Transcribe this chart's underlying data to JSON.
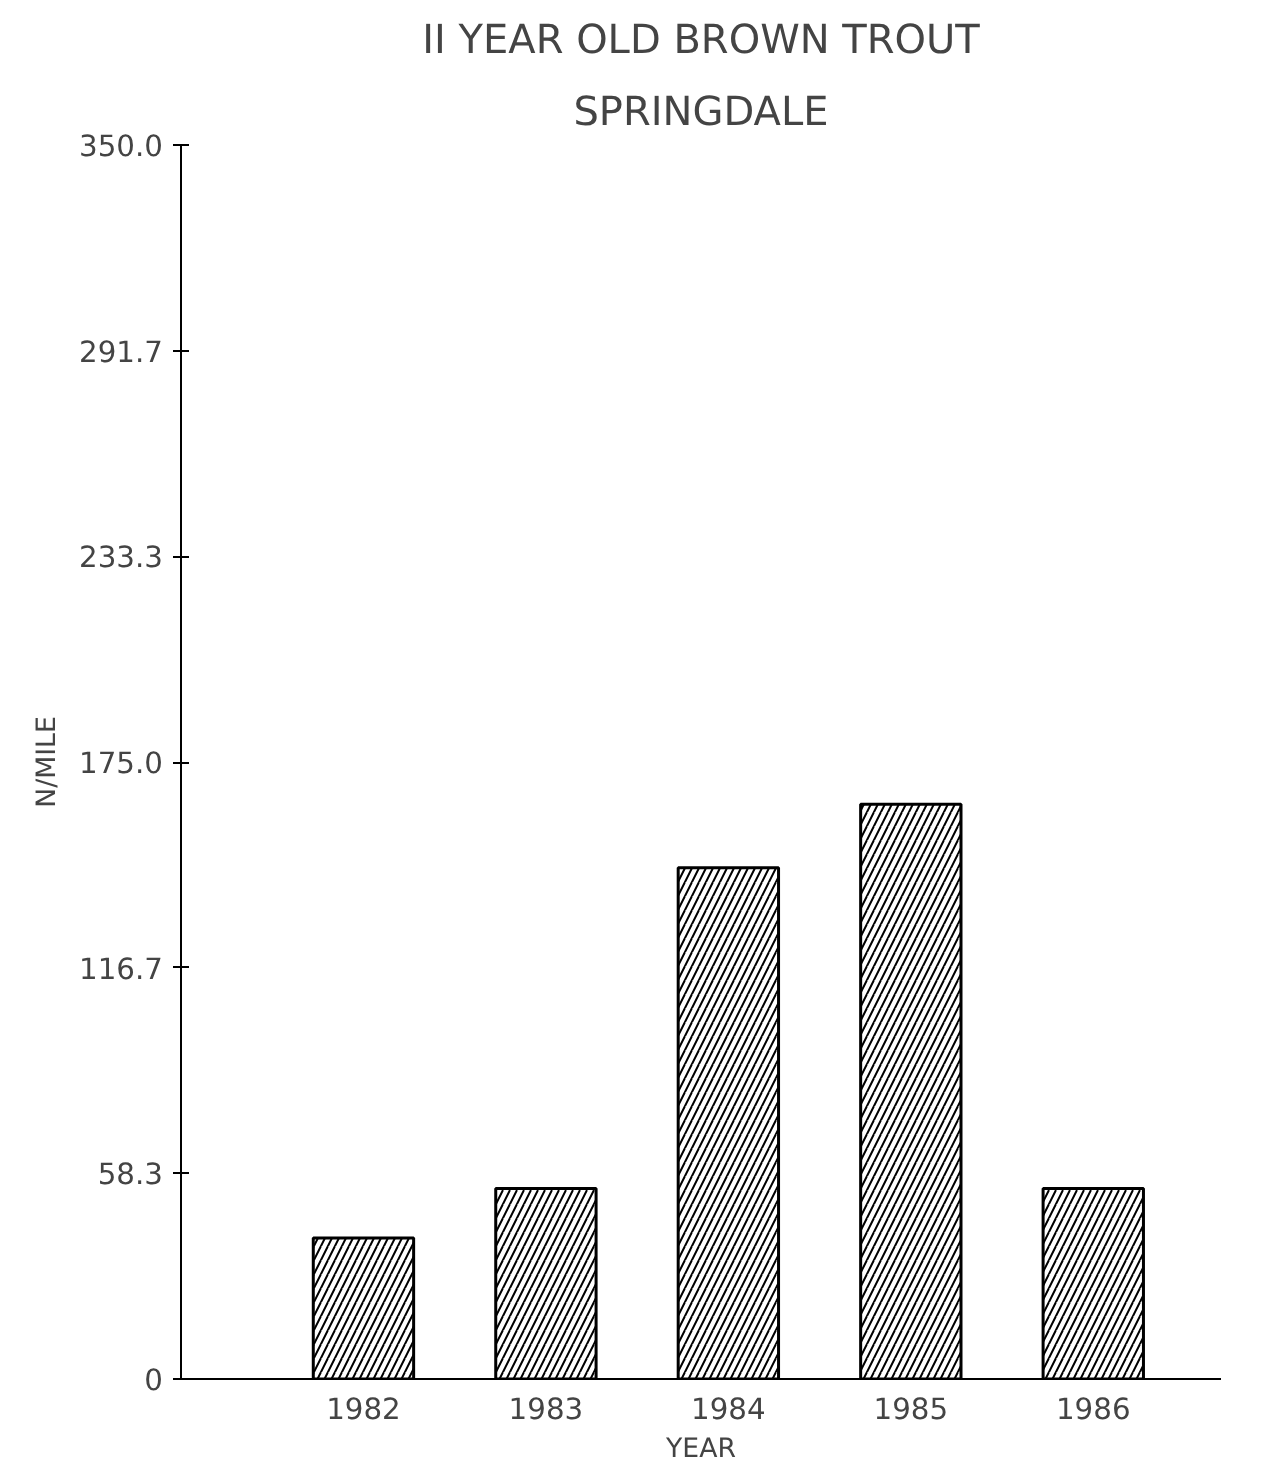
{
  "chart_data": {
    "type": "bar",
    "title": "II YEAR OLD BROWN TROUT",
    "subtitle": "SPRINGDALE",
    "xlabel": "YEAR",
    "ylabel": "N/MILE",
    "categories": [
      "1982",
      "1983",
      "1984",
      "1985",
      "1986"
    ],
    "values": [
      40,
      54,
      145,
      163,
      54
    ],
    "color": "#000000",
    "ylim": [
      0,
      350
    ],
    "yticks": [
      0,
      58.3,
      116.7,
      {
        "value": 175,
        "label": "175.0"
      },
      233.3,
      291.7,
      {
        "value": 350,
        "label": "350.0"
      }
    ],
    "grid": false
  }
}
